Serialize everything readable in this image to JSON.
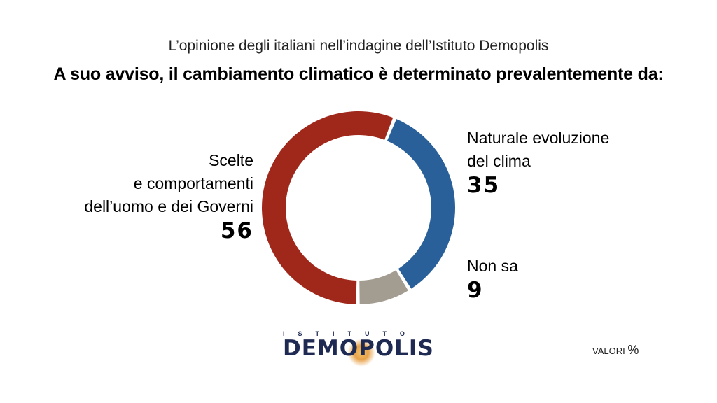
{
  "header": {
    "subtitle": "L’opinione degli italiani nell’indagine dell’Istituto Demopolis",
    "title": "A suo avviso, il cambiamento climatico è determinato prevalentemente da:"
  },
  "chart_data": {
    "type": "pie",
    "variant": "donut",
    "categories": [
      "Naturale evoluzione del clima",
      "Non sa",
      "Scelte e comportamenti dell’uomo e dei Governi"
    ],
    "values": [
      35,
      9,
      56
    ],
    "colors": [
      "#2a6099",
      "#a39c91",
      "#a0281b"
    ],
    "labels": [
      {
        "lines": [
          "Naturale evoluzione",
          "del clima"
        ],
        "value": "35"
      },
      {
        "lines": [
          "Non sa"
        ],
        "value": "9"
      },
      {
        "lines": [
          "Scelte",
          "e comportamenti",
          "dell’uomo e dei Governi"
        ],
        "value": "56"
      }
    ]
  },
  "logo": {
    "small": "ISTITUTO",
    "big": "DEMOPOLIS"
  },
  "footer": {
    "units_label": "VALORI",
    "units_symbol": "%"
  }
}
